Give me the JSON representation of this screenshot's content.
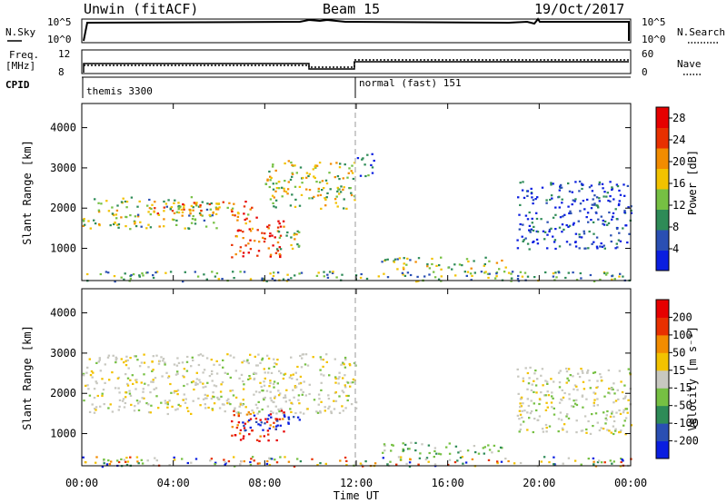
{
  "header": {
    "station": "Unwin (fitACF)",
    "beam": "Beam 15",
    "date": "19/Oct/2017"
  },
  "top_panel": {
    "nsky_label": "N.Sky",
    "nsky_ticks": [
      "10^5",
      "10^0"
    ],
    "nsearch_label": "N.Search",
    "nsearch_ticks": [
      "10^5",
      "10^0"
    ],
    "freq_label_1": "Freq.",
    "freq_label_2": "[MHz]",
    "freq_ticks": [
      "12",
      "8"
    ],
    "nave_label": "Nave",
    "nave_ticks": [
      "60",
      "0"
    ],
    "cpid_label": "CPID",
    "cpid_modes": [
      {
        "name": "themis 3300",
        "start_h": 0,
        "end_h": 12
      },
      {
        "name": "normal (fast) 151",
        "start_h": 12,
        "end_h": 24
      }
    ]
  },
  "chart_data": [
    {
      "type": "heatmap",
      "title": "",
      "xlabel": "Time UT",
      "ylabel": "Slant Range [km]",
      "x_ticks": [
        "00:00",
        "04:00",
        "08:00",
        "12:00",
        "16:00",
        "20:00",
        "00:00"
      ],
      "xlim_hours": [
        0,
        24
      ],
      "ylim": [
        200,
        4600
      ],
      "y_ticks": [
        1000,
        2000,
        3000,
        4000
      ],
      "colorbar": {
        "label": "Power [dB]",
        "ticks": [
          4,
          8,
          12,
          16,
          20,
          24,
          28
        ],
        "range": [
          0,
          30
        ],
        "colors": [
          "#0a1ee0",
          "#2a4fb3",
          "#2e8b57",
          "#76c043",
          "#f2c200",
          "#f28c00",
          "#e83000",
          "#e60000"
        ]
      },
      "regions": [
        {
          "t0": 0.0,
          "t1": 6.0,
          "r0": 1500,
          "r1": 2300,
          "level": 0.45
        },
        {
          "t0": 3.0,
          "t1": 7.5,
          "r0": 1800,
          "r1": 2200,
          "level": 0.7
        },
        {
          "t0": 6.5,
          "t1": 8.8,
          "r0": 800,
          "r1": 1800,
          "level": 0.8
        },
        {
          "t0": 8.5,
          "t1": 9.8,
          "r0": 1000,
          "r1": 1500,
          "level": 0.5
        },
        {
          "t0": 8.0,
          "t1": 12.0,
          "r0": 2000,
          "r1": 3200,
          "level": 0.5
        },
        {
          "t0": 12.0,
          "t1": 12.8,
          "r0": 2800,
          "r1": 3400,
          "level": 0.2
        },
        {
          "t0": 13.0,
          "t1": 18.5,
          "r0": 500,
          "r1": 800,
          "level": 0.45
        },
        {
          "t0": 19.0,
          "t1": 24.0,
          "r0": 1000,
          "r1": 2700,
          "level": 0.15
        },
        {
          "t0": 0.0,
          "t1": 24.0,
          "r0": 200,
          "r1": 450,
          "level": 0.35
        }
      ]
    },
    {
      "type": "heatmap",
      "title": "",
      "xlabel": "Time UT",
      "ylabel": "Slant Range [km]",
      "x_ticks": [
        "00:00",
        "04:00",
        "08:00",
        "12:00",
        "16:00",
        "20:00",
        "00:00"
      ],
      "xlim_hours": [
        0,
        24
      ],
      "ylim": [
        200,
        4600
      ],
      "y_ticks": [
        1000,
        2000,
        3000,
        4000
      ],
      "colorbar": {
        "label": "Velocity [m s⁻¹]",
        "ticks": [
          "200",
          "100",
          "50",
          "15",
          "-15",
          "-50",
          "-100",
          "-200"
        ],
        "colors": [
          "#0a1ee0",
          "#2a4fb3",
          "#2e8b57",
          "#76c043",
          "#c8c8c0",
          "#f2c200",
          "#f28c00",
          "#e83000",
          "#e60000"
        ]
      },
      "regions": [
        {
          "t0": 0.0,
          "t1": 12.0,
          "r0": 1500,
          "r1": 3000,
          "kind": "gray"
        },
        {
          "t0": 6.5,
          "t1": 8.8,
          "r0": 800,
          "r1": 1600,
          "kind": "red"
        },
        {
          "t0": 7.0,
          "t1": 9.8,
          "r0": 1100,
          "r1": 1500,
          "kind": "blue"
        },
        {
          "t0": 13.0,
          "t1": 18.5,
          "r0": 500,
          "r1": 800,
          "kind": "green"
        },
        {
          "t0": 19.0,
          "t1": 24.0,
          "r0": 1000,
          "r1": 2700,
          "kind": "gray"
        },
        {
          "t0": 0.0,
          "t1": 24.0,
          "r0": 200,
          "r1": 450,
          "kind": "mixed"
        }
      ]
    }
  ]
}
